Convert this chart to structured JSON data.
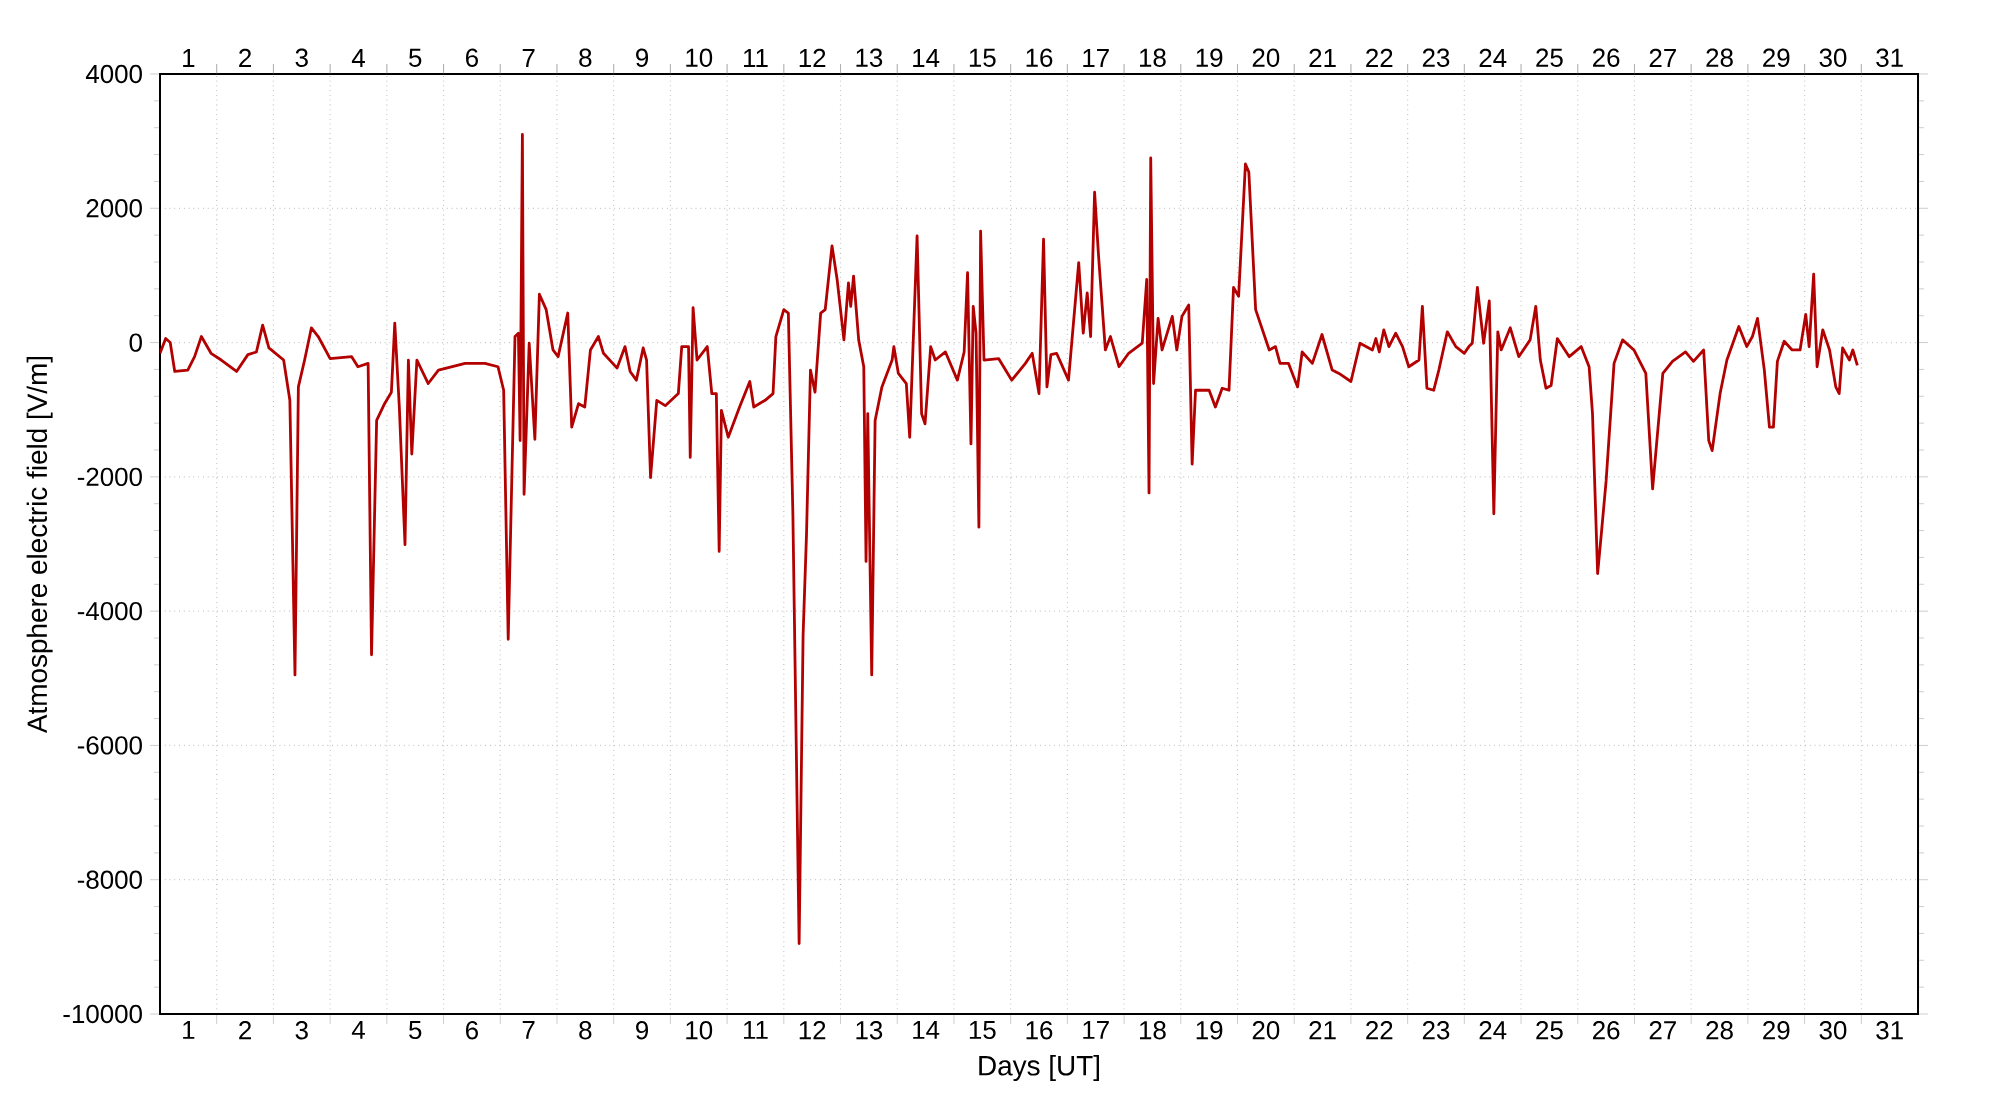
{
  "chart_data": {
    "type": "line",
    "xlabel": "Days [UT]",
    "ylabel": "Atmosphere electric field [V/m]",
    "grid": true,
    "xlim": [
      1,
      32
    ],
    "ylim": [
      -10000,
      4000
    ],
    "yticks": [
      -10000,
      -8000,
      -6000,
      -4000,
      -2000,
      0,
      2000,
      4000
    ],
    "xticks": [
      {
        "value": 1.5,
        "label": "1"
      },
      {
        "value": 2,
        "label": null
      },
      {
        "value": 2.5,
        "label": "2"
      },
      {
        "value": 3,
        "label": null
      },
      {
        "value": 3.5,
        "label": "3"
      },
      {
        "value": 4,
        "label": null
      },
      {
        "value": 4.5,
        "label": "4"
      },
      {
        "value": 5,
        "label": null
      },
      {
        "value": 5.5,
        "label": "5"
      },
      {
        "value": 6,
        "label": null
      },
      {
        "value": 6.5,
        "label": "6"
      },
      {
        "value": 7,
        "label": null
      },
      {
        "value": 7.5,
        "label": "7"
      },
      {
        "value": 8,
        "label": null
      },
      {
        "value": 8.5,
        "label": "8"
      },
      {
        "value": 9,
        "label": null
      },
      {
        "value": 9.5,
        "label": "9"
      },
      {
        "value": 10,
        "label": null
      },
      {
        "value": 10.5,
        "label": "10"
      },
      {
        "value": 11,
        "label": null
      },
      {
        "value": 11.5,
        "label": "11"
      },
      {
        "value": 12,
        "label": null
      },
      {
        "value": 12.5,
        "label": "12"
      },
      {
        "value": 13,
        "label": null
      },
      {
        "value": 13.5,
        "label": "13"
      },
      {
        "value": 14,
        "label": null
      },
      {
        "value": 14.5,
        "label": "14"
      },
      {
        "value": 15,
        "label": null
      },
      {
        "value": 15.5,
        "label": "15"
      },
      {
        "value": 16,
        "label": null
      },
      {
        "value": 16.5,
        "label": "16"
      },
      {
        "value": 17,
        "label": null
      },
      {
        "value": 17.5,
        "label": "17"
      },
      {
        "value": 18,
        "label": null
      },
      {
        "value": 18.5,
        "label": "18"
      },
      {
        "value": 19,
        "label": null
      },
      {
        "value": 19.5,
        "label": "19"
      },
      {
        "value": 20,
        "label": null
      },
      {
        "value": 20.5,
        "label": "20"
      },
      {
        "value": 21,
        "label": null
      },
      {
        "value": 21.5,
        "label": "21"
      },
      {
        "value": 22,
        "label": null
      },
      {
        "value": 22.5,
        "label": "22"
      },
      {
        "value": 23,
        "label": null
      },
      {
        "value": 23.5,
        "label": "23"
      },
      {
        "value": 24,
        "label": null
      },
      {
        "value": 24.5,
        "label": "24"
      },
      {
        "value": 25,
        "label": null
      },
      {
        "value": 25.5,
        "label": "25"
      },
      {
        "value": 26,
        "label": null
      },
      {
        "value": 26.5,
        "label": "26"
      },
      {
        "value": 27,
        "label": null
      },
      {
        "value": 27.5,
        "label": "27"
      },
      {
        "value": 28,
        "label": null
      },
      {
        "value": 28.5,
        "label": "28"
      },
      {
        "value": 29,
        "label": null
      },
      {
        "value": 29.5,
        "label": "29"
      },
      {
        "value": 30,
        "label": null
      },
      {
        "value": 30.5,
        "label": "30"
      },
      {
        "value": 31,
        "label": null
      },
      {
        "value": 31.5,
        "label": "31"
      }
    ],
    "x2lim": [
      1,
      32
    ],
    "x2ticks": [
      {
        "value": 1.5,
        "label": "1"
      },
      {
        "value": 2,
        "label": null
      },
      {
        "value": 2.5,
        "label": "2"
      },
      {
        "value": 3,
        "label": null
      },
      {
        "value": 3.5,
        "label": "3"
      },
      {
        "value": 4,
        "label": null
      },
      {
        "value": 4.5,
        "label": "4"
      },
      {
        "value": 5,
        "label": null
      },
      {
        "value": 5.5,
        "label": "5"
      },
      {
        "value": 6,
        "label": null
      },
      {
        "value": 6.5,
        "label": "6"
      },
      {
        "value": 7,
        "label": null
      },
      {
        "value": 7.5,
        "label": "7"
      },
      {
        "value": 8,
        "label": null
      },
      {
        "value": 8.5,
        "label": "8"
      },
      {
        "value": 9,
        "label": null
      },
      {
        "value": 9.5,
        "label": "9"
      },
      {
        "value": 10,
        "label": null
      },
      {
        "value": 10.5,
        "label": "10"
      },
      {
        "value": 11,
        "label": null
      },
      {
        "value": 11.5,
        "label": "11"
      },
      {
        "value": 12,
        "label": null
      },
      {
        "value": 12.5,
        "label": "12"
      },
      {
        "value": 13,
        "label": null
      },
      {
        "value": 13.5,
        "label": "13"
      },
      {
        "value": 14,
        "label": null
      },
      {
        "value": 14.5,
        "label": "14"
      },
      {
        "value": 15,
        "label": null
      },
      {
        "value": 15.5,
        "label": "15"
      },
      {
        "value": 16,
        "label": null
      },
      {
        "value": 16.5,
        "label": "16"
      },
      {
        "value": 17,
        "label": null
      },
      {
        "value": 17.5,
        "label": "17"
      },
      {
        "value": 18,
        "label": null
      },
      {
        "value": 18.5,
        "label": "18"
      },
      {
        "value": 19,
        "label": null
      },
      {
        "value": 19.5,
        "label": "19"
      },
      {
        "value": 20,
        "label": null
      },
      {
        "value": 20.5,
        "label": "20"
      },
      {
        "value": 21,
        "label": null
      },
      {
        "value": 21.5,
        "label": "21"
      },
      {
        "value": 22,
        "label": null
      },
      {
        "value": 22.5,
        "label": "22"
      },
      {
        "value": 23,
        "label": null
      },
      {
        "value": 23.5,
        "label": "23"
      },
      {
        "value": 24,
        "label": null
      },
      {
        "value": 24.5,
        "label": "24"
      },
      {
        "value": 25,
        "label": null
      },
      {
        "value": 25.5,
        "label": "25"
      },
      {
        "value": 26,
        "label": null
      },
      {
        "value": 26.5,
        "label": "26"
      },
      {
        "value": 27,
        "label": null
      },
      {
        "value": 27.5,
        "label": "27"
      },
      {
        "value": 28,
        "label": null
      },
      {
        "value": 28.5,
        "label": "28"
      },
      {
        "value": 29,
        "label": null
      },
      {
        "value": 29.5,
        "label": "29"
      },
      {
        "value": 30,
        "label": null
      },
      {
        "value": 30.5,
        "label": "30"
      },
      {
        "value": 31,
        "label": null
      },
      {
        "value": 31.5,
        "label": "31"
      }
    ],
    "x": [
      1.0,
      1.1,
      1.18,
      1.26,
      1.49,
      1.61,
      1.73,
      1.9,
      2.08,
      2.35,
      2.55,
      2.7,
      2.81,
      2.92,
      3.18,
      3.29,
      3.38,
      3.44,
      3.55,
      3.67,
      3.79,
      4.0,
      4.38,
      4.49,
      4.67,
      4.73,
      4.82,
      4.96,
      5.08,
      5.14,
      5.22,
      5.32,
      5.38,
      5.44,
      5.53,
      5.73,
      5.91,
      6.38,
      6.73,
      6.96,
      7.06,
      7.14,
      7.26,
      7.32,
      7.35,
      7.39,
      7.42,
      7.51,
      7.61,
      7.69,
      7.81,
      7.93,
      8.02,
      8.19,
      8.26,
      8.38,
      8.49,
      8.59,
      8.73,
      8.82,
      9.06,
      9.2,
      9.29,
      9.4,
      9.52,
      9.58,
      9.65,
      9.76,
      9.91,
      10.14,
      10.2,
      10.32,
      10.35,
      10.4,
      10.47,
      10.65,
      10.73,
      10.81,
      10.86,
      10.9,
      11.02,
      11.22,
      11.4,
      11.47,
      11.67,
      11.81,
      11.86,
      12.0,
      12.08,
      12.16,
      12.27,
      12.34,
      12.4,
      12.47,
      12.55,
      12.65,
      12.73,
      12.85,
      12.94,
      13.06,
      13.14,
      13.18,
      13.23,
      13.32,
      13.41,
      13.45,
      13.48,
      13.55,
      13.61,
      13.73,
      13.91,
      13.94,
      14.02,
      14.16,
      14.22,
      14.35,
      14.43,
      14.49,
      14.59,
      14.67,
      14.85,
      15.06,
      15.18,
      15.24,
      15.3,
      15.34,
      15.39,
      15.44,
      15.47,
      15.53,
      15.79,
      16.02,
      16.26,
      16.38,
      16.5,
      16.58,
      16.64,
      16.71,
      16.81,
      17.02,
      17.2,
      17.28,
      17.35,
      17.41,
      17.48,
      17.55,
      17.67,
      17.76,
      17.91,
      18.08,
      18.32,
      18.4,
      18.44,
      18.47,
      18.52,
      18.6,
      18.67,
      18.85,
      18.93,
      19.02,
      19.14,
      19.2,
      19.26,
      19.5,
      19.61,
      19.73,
      19.85,
      19.93,
      20.02,
      20.14,
      20.2,
      20.32,
      20.56,
      20.67,
      20.75,
      20.9,
      21.06,
      21.14,
      21.32,
      21.49,
      21.67,
      21.79,
      22.0,
      22.16,
      22.38,
      22.44,
      22.5,
      22.58,
      22.67,
      22.79,
      22.91,
      23.02,
      23.2,
      23.26,
      23.34,
      23.46,
      23.55,
      23.7,
      23.85,
      24.0,
      24.08,
      24.14,
      24.23,
      24.34,
      24.44,
      24.52,
      24.59,
      24.65,
      24.81,
      24.96,
      25.16,
      25.26,
      25.34,
      25.44,
      25.53,
      25.64,
      25.85,
      26.06,
      26.2,
      26.26,
      26.35,
      26.42,
      26.5,
      26.64,
      26.79,
      26.99,
      27.2,
      27.32,
      27.5,
      27.67,
      27.9,
      28.04,
      28.22,
      28.31,
      28.37,
      28.51,
      28.63,
      28.84,
      28.98,
      29.08,
      29.17,
      29.29,
      29.38,
      29.45,
      29.52,
      29.64,
      29.78,
      29.92,
      30.02,
      30.08,
      30.16,
      30.22,
      30.32,
      30.44,
      30.55,
      30.61,
      30.67,
      30.79,
      30.85,
      30.93
    ],
    "series": [
      {
        "color": "#b30000",
        "values": [
          -160,
          60,
          0,
          -430,
          -410,
          -210,
          90,
          -160,
          -260,
          -430,
          -180,
          -140,
          260,
          -80,
          -260,
          -860,
          -4950,
          -660,
          -260,
          220,
          90,
          -240,
          -210,
          -360,
          -310,
          -4650,
          -1160,
          -910,
          -740,
          290,
          -960,
          -3010,
          -260,
          -1660,
          -260,
          -610,
          -410,
          -310,
          -310,
          -360,
          -710,
          -4420,
          90,
          140,
          -1460,
          3100,
          -2260,
          -10,
          -1440,
          720,
          490,
          -110,
          -210,
          440,
          -1260,
          -910,
          -960,
          -110,
          90,
          -160,
          -380,
          -60,
          -430,
          -560,
          -80,
          -260,
          -2010,
          -860,
          -940,
          -760,
          -60,
          -60,
          -1710,
          520,
          -260,
          -60,
          -760,
          -760,
          -3110,
          -1010,
          -1410,
          -960,
          -580,
          -960,
          -860,
          -760,
          90,
          490,
          440,
          -2560,
          -8950,
          -4360,
          -2860,
          -410,
          -740,
          440,
          490,
          1440,
          940,
          40,
          890,
          540,
          990,
          40,
          -360,
          -3260,
          -1060,
          -4950,
          -1160,
          -660,
          -260,
          -60,
          -460,
          -610,
          -1410,
          1590,
          -1060,
          -1210,
          -60,
          -260,
          -140,
          -560,
          -140,
          1040,
          -1510,
          540,
          140,
          -2750,
          1660,
          -260,
          -240,
          -560,
          -310,
          -160,
          -760,
          1540,
          -660,
          -180,
          -160,
          -560,
          1190,
          140,
          740,
          90,
          2240,
          1290,
          -110,
          90,
          -360,
          -160,
          -10,
          940,
          -2240,
          2750,
          -610,
          360,
          -110,
          390,
          -110,
          390,
          560,
          -1810,
          -710,
          -710,
          -960,
          -680,
          -710,
          820,
          690,
          2660,
          2540,
          490,
          -110,
          -60,
          -310,
          -310,
          -660,
          -140,
          -310,
          120,
          -410,
          -460,
          -580,
          -10,
          -110,
          60,
          -140,
          190,
          -60,
          140,
          -60,
          -360,
          -260,
          540,
          -680,
          -710,
          -410,
          160,
          -60,
          -160,
          -60,
          -10,
          820,
          -10,
          620,
          -2550,
          160,
          -110,
          220,
          -210,
          40,
          540,
          -260,
          -680,
          -640,
          60,
          -210,
          -60,
          -360,
          -1060,
          -3440,
          -2810,
          -2060,
          -310,
          40,
          -110,
          -460,
          -2180,
          -460,
          -280,
          -140,
          -280,
          -110,
          -1460,
          -1610,
          -760,
          -260,
          240,
          -60,
          90,
          360,
          -410,
          -1260,
          -1260,
          -280,
          20,
          -110,
          -110,
          420,
          -60,
          1020,
          -360,
          190,
          -110,
          -660,
          -760,
          -80,
          -260,
          -110,
          -340
        ]
      }
    ]
  }
}
